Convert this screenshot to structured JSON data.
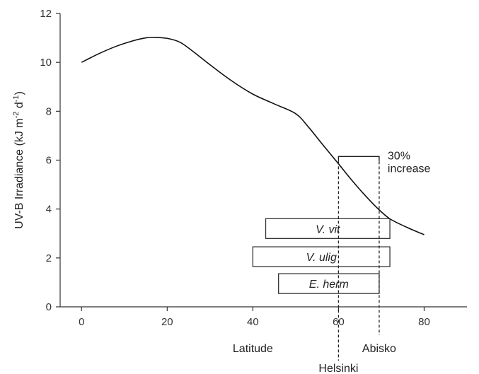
{
  "chart_data": {
    "type": "line",
    "title": "",
    "xlabel": "Latitude",
    "ylabel_main": "UV-B Irradiance (kJ m",
    "ylabel_sup1": "-2",
    "ylabel_mid": " d",
    "ylabel_sup2": "-1",
    "ylabel_end": ")",
    "xlim": [
      -5,
      90
    ],
    "ylim": [
      0,
      12
    ],
    "x_ticks": [
      0,
      20,
      40,
      60,
      80
    ],
    "y_ticks": [
      0,
      2,
      4,
      6,
      8,
      10,
      12
    ],
    "grid": false,
    "series": [
      {
        "x": [
          0,
          4,
          8,
          12,
          15,
          17,
          20,
          23,
          26,
          30,
          35,
          40,
          45,
          50,
          53,
          56,
          60,
          63,
          66,
          69,
          72,
          76,
          80
        ],
        "y": [
          10.0,
          10.35,
          10.65,
          10.88,
          11.0,
          11.02,
          10.98,
          10.82,
          10.45,
          9.9,
          9.25,
          8.7,
          8.3,
          7.9,
          7.35,
          6.7,
          5.85,
          5.2,
          4.6,
          4.05,
          3.6,
          3.25,
          2.95
        ]
      }
    ],
    "ranges": [
      {
        "label": "V. vit",
        "x_start": 43,
        "x_end": 72,
        "y_center": 3.2
      },
      {
        "label": "V. ulig",
        "x_start": 40,
        "x_end": 72,
        "y_center": 2.05
      },
      {
        "label": "E. herm",
        "x_start": 46,
        "x_end": 69.5,
        "y_center": 0.95
      }
    ],
    "markers": [
      {
        "label": "Helsinki",
        "x": 60,
        "y_top": 6.15
      },
      {
        "label": "Abisko",
        "x": 69.5,
        "y_top": 6.15
      }
    ],
    "annotation": {
      "line1": "30%",
      "line2": "increase",
      "x_start": 60,
      "x_end": 69.5,
      "y": 6.15
    }
  }
}
